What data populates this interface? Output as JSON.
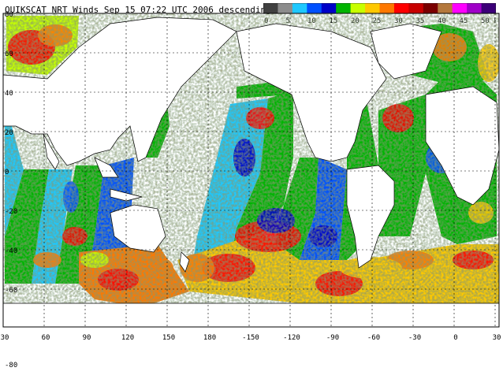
{
  "title": "QUIKSCAT NRT Winds Sep 15 07:22 UTC 2006 descending",
  "colorbar": {
    "ticks": [
      "0",
      "5",
      "10",
      "15",
      "20",
      "25",
      "30",
      "35",
      "40",
      "45",
      "50 knots"
    ],
    "colors": [
      "#404040",
      "#8c8c8c",
      "#1ec8ff",
      "#0050ff",
      "#0000c8",
      "#00b400",
      "#c8ff00",
      "#ffc800",
      "#ff7800",
      "#ff0000",
      "#c80000",
      "#7a0000",
      "#b4783c",
      "#ff00ff",
      "#a000c8",
      "#3c0078"
    ]
  },
  "map": {
    "lat_labels": [
      "80",
      "60",
      "40",
      "20",
      "0",
      "-20",
      "-40",
      "-60",
      "-80"
    ],
    "lon_labels": [
      "30",
      "60",
      "90",
      "120",
      "150",
      "180",
      "-150",
      "-120",
      "-90",
      "-60",
      "-30",
      "0",
      "30"
    ],
    "corner_lat_label": "-80",
    "colors": {
      "land": "#ffffff",
      "coast": "#000000",
      "grid": "#000000"
    }
  }
}
